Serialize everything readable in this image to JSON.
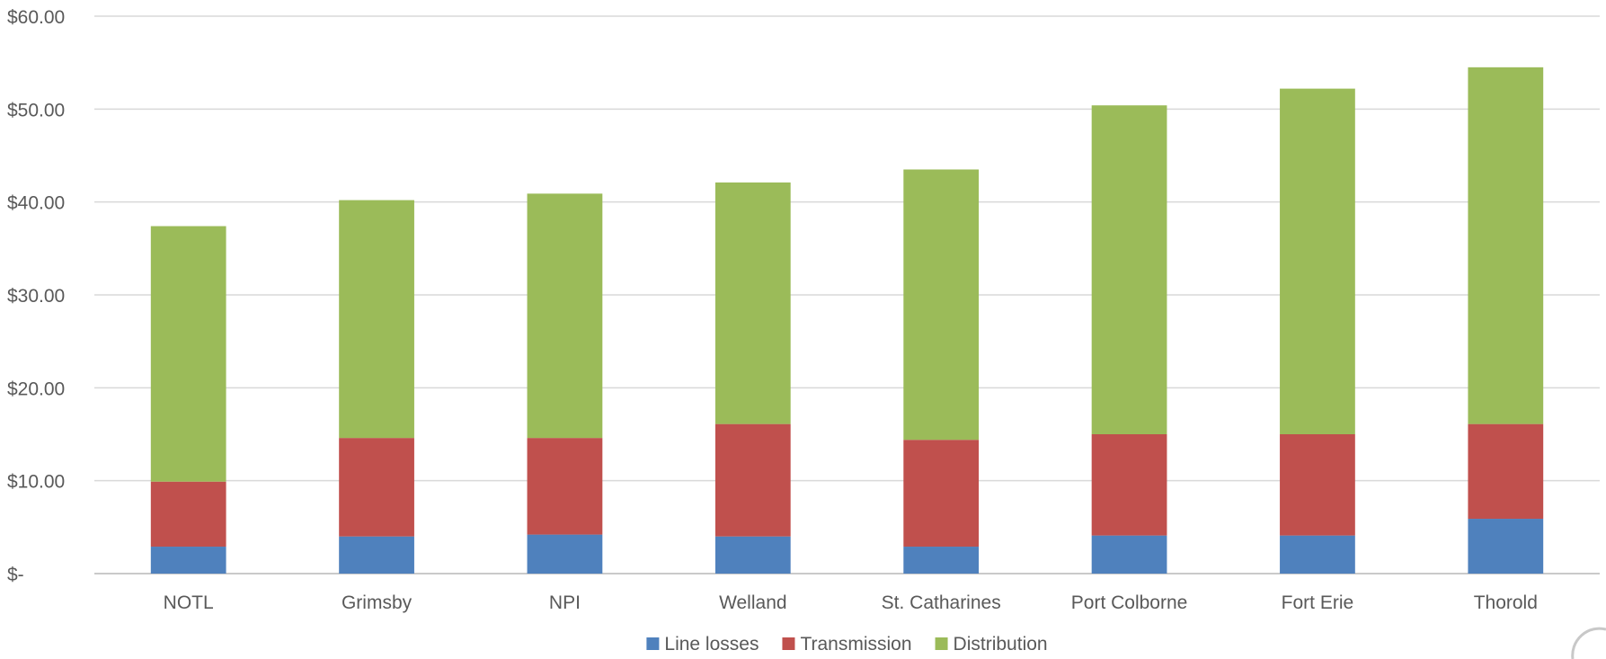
{
  "chart_data": {
    "type": "bar",
    "stacked": true,
    "categories": [
      "NOTL",
      "Grimsby",
      "NPI",
      "Welland",
      "St. Catharines",
      "Port Colborne",
      "Fort Erie",
      "Thorold"
    ],
    "series": [
      {
        "name": "Line losses",
        "color": "#4f81bd",
        "values": [
          2.9,
          4.0,
          4.2,
          4.0,
          2.9,
          4.1,
          4.1,
          5.9
        ]
      },
      {
        "name": "Transmission",
        "color": "#c0504d",
        "values": [
          7.0,
          10.6,
          10.4,
          12.1,
          11.5,
          10.9,
          10.9,
          10.2
        ]
      },
      {
        "name": "Distribution",
        "color": "#9bbb59",
        "values": [
          27.5,
          25.6,
          26.3,
          26.0,
          29.1,
          35.4,
          37.2,
          38.4
        ]
      }
    ],
    "ylim": [
      0,
      60
    ],
    "y_ticks": [
      0,
      10,
      20,
      30,
      40,
      50,
      60
    ],
    "y_tick_labels": [
      "$-",
      "$10.00",
      "$20.00",
      "$30.00",
      "$40.00",
      "$50.00",
      "$60.00"
    ],
    "grid": true,
    "legend_position": "bottom"
  }
}
